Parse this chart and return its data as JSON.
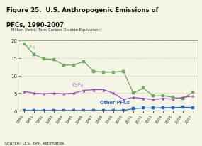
{
  "title_line1": "Figure 25.  U.S. Anthropogenic Emissions of",
  "title_line2": "PFCs, 1990-2007",
  "ylabel": "Million Metric Tons Carbon Dioxide Equivalent",
  "source": "Source: U.S. EPA estimates.",
  "years": [
    1990,
    1991,
    1992,
    1993,
    1994,
    1995,
    1996,
    1997,
    1998,
    1999,
    2000,
    2001,
    2002,
    2003,
    2004,
    2005,
    2006,
    2007
  ],
  "cf4": [
    19.0,
    16.0,
    14.8,
    14.5,
    13.0,
    13.0,
    14.0,
    11.2,
    11.0,
    11.0,
    11.2,
    5.0,
    6.5,
    4.2,
    4.3,
    3.8,
    3.5,
    5.3
  ],
  "c2f6": [
    5.5,
    5.0,
    4.8,
    5.0,
    4.8,
    5.0,
    5.8,
    6.0,
    6.0,
    5.0,
    3.2,
    3.8,
    3.5,
    3.2,
    3.5,
    3.3,
    3.8,
    4.2
  ],
  "other_pfcs": [
    0.1,
    0.1,
    0.1,
    0.1,
    0.1,
    0.1,
    0.1,
    0.1,
    0.1,
    0.1,
    0.1,
    0.6,
    0.8,
    0.8,
    0.9,
    0.9,
    1.0,
    0.9
  ],
  "cf4_color": "#6aaa5a",
  "c2f6_color": "#9b4db8",
  "other_color": "#2266cc",
  "ylim": [
    0,
    20
  ],
  "yticks": [
    0,
    5,
    10,
    15,
    20
  ],
  "bg_color": "#f5f5e6",
  "plot_bg": "#f5f5e6",
  "grid_color": "#d0cdb8",
  "title_box_color": "#f0ece0",
  "border_color": "#999988"
}
